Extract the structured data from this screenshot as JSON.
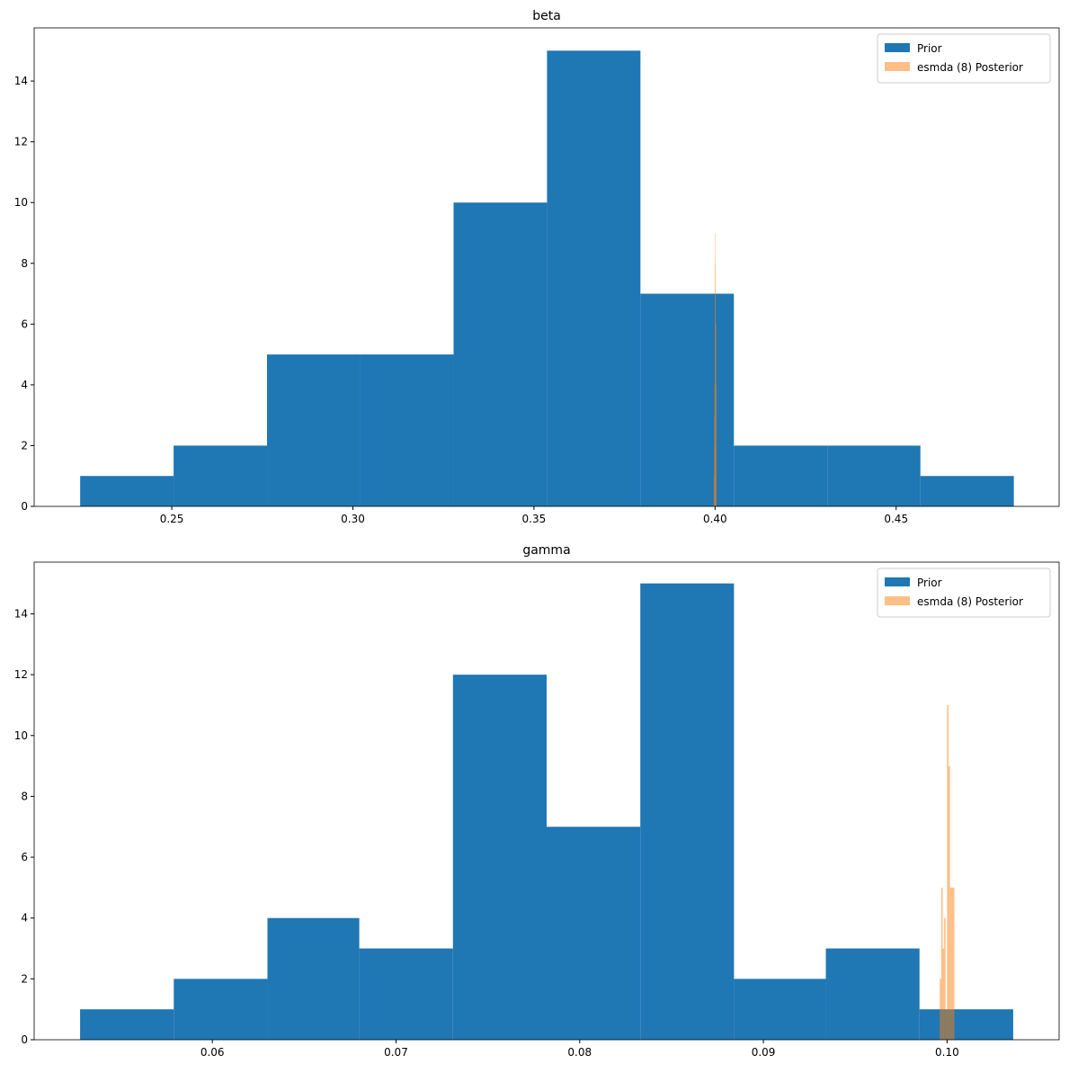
{
  "chart_data": [
    {
      "type": "histogram",
      "title": "beta",
      "series": [
        {
          "name": "Prior",
          "color": "#1f77b4",
          "alpha": 1,
          "bins": [
            0.2247,
            0.2505,
            0.2763,
            0.302,
            0.3278,
            0.3536,
            0.3794,
            0.4052,
            0.431,
            0.4567,
            0.4825
          ],
          "values": [
            1,
            2,
            5,
            5,
            10,
            15,
            7,
            2,
            2,
            1
          ]
        },
        {
          "name": "esmda (8) Posterior",
          "color": "#ff7f0e",
          "alpha": 0.5,
          "bins": [
            0.39965,
            0.39972,
            0.39979,
            0.39986,
            0.39993,
            0.4,
            0.40007,
            0.40014,
            0.40021,
            0.40028,
            0.40035
          ],
          "values": [
            1,
            2,
            3,
            4,
            9,
            8,
            7,
            6,
            6,
            4
          ]
        }
      ],
      "xlim": [
        0.212,
        0.495
      ],
      "ylim": [
        0,
        15.75
      ],
      "xticks": [
        0.25,
        {
          "value": 0.3,
          "label": "0.30"
        },
        0.35,
        {
          "value": 0.4,
          "label": "0.40"
        },
        0.45
      ],
      "yticks": [
        0,
        2,
        4,
        6,
        8,
        10,
        12,
        14
      ],
      "legend": "upper right"
    },
    {
      "type": "histogram",
      "title": "gamma",
      "series": [
        {
          "name": "Prior",
          "color": "#1f77b4",
          "alpha": 1,
          "bins": [
            0.0528,
            0.0579,
            0.063,
            0.068,
            0.0731,
            0.0782,
            0.0833,
            0.0884,
            0.0934,
            0.0985,
            0.1036
          ],
          "values": [
            1,
            2,
            4,
            3,
            12,
            7,
            15,
            2,
            3,
            1
          ]
        },
        {
          "name": "esmda (8) Posterior",
          "color": "#ff7f0e",
          "alpha": 0.5,
          "bins": [
            0.0996,
            0.09968,
            0.09976,
            0.09984,
            0.09992,
            0.1,
            0.10008,
            0.10016,
            0.10024,
            0.10032,
            0.1004
          ],
          "values": [
            2,
            5,
            3,
            4,
            1,
            11,
            9,
            5,
            5,
            5
          ]
        }
      ],
      "xlim": [
        0.0503,
        0.1061
      ],
      "ylim": [
        0,
        15.7
      ],
      "xticks": [
        0.06,
        0.07,
        0.08,
        0.09,
        {
          "value": 0.1,
          "label": "0.10"
        }
      ],
      "yticks": [
        0,
        2,
        4,
        6,
        8,
        10,
        12,
        14
      ],
      "legend": "upper right"
    }
  ]
}
